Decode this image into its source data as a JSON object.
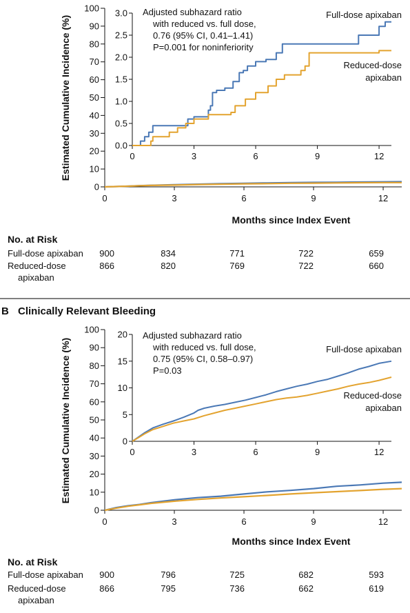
{
  "colors": {
    "full": "#4a78b5",
    "reduced": "#e3a32f",
    "axis": "#111111",
    "divider": "#555555"
  },
  "chart_data": [
    {
      "type": "line",
      "panel_letter": "",
      "panel_title": "",
      "xlabel": "Months since Index Event",
      "ylabel": "Estimated Cumulative Incidence (%)",
      "xlim": [
        0,
        12.8
      ],
      "ylim": [
        0,
        100
      ],
      "x_ticks": [
        0,
        3,
        6,
        9,
        12
      ],
      "y_ticks": [
        0,
        10,
        20,
        30,
        40,
        50,
        60,
        70,
        80,
        90,
        100
      ],
      "series": [
        {
          "name": "Full-dose apixaban",
          "key": "full",
          "x": [
            0,
            0.5,
            1,
            1.5,
            2,
            3,
            4,
            5,
            6,
            7,
            8,
            9,
            10,
            11,
            12,
            12.8
          ],
          "y": [
            0,
            0.2,
            0.4,
            0.7,
            0.9,
            1.2,
            1.5,
            1.8,
            2.0,
            2.2,
            2.4,
            2.5,
            2.6,
            2.7,
            2.8,
            2.9
          ]
        },
        {
          "name": "Reduced-dose apixaban",
          "key": "reduced",
          "x": [
            0,
            0.5,
            1,
            1.5,
            2,
            3,
            4,
            5,
            6,
            7,
            8,
            9,
            10,
            11,
            12,
            12.8
          ],
          "y": [
            0,
            0.2,
            0.4,
            0.6,
            0.8,
            1.0,
            1.3,
            1.5,
            1.7,
            1.8,
            2.0,
            2.1,
            2.2,
            2.3,
            2.4,
            2.4
          ]
        }
      ],
      "inset": {
        "xlim": [
          0,
          12.6
        ],
        "ylim": [
          0,
          3.0
        ],
        "x_ticks": [
          0,
          3,
          6,
          9,
          12
        ],
        "y_ticks": [
          0.0,
          0.5,
          1.0,
          1.5,
          2.0,
          2.5,
          3.0
        ],
        "y_tick_labels": [
          "0.0",
          "0.5",
          "1.0",
          "1.5",
          "2.0",
          "2.5",
          "3.0"
        ],
        "series": [
          {
            "name": "Full-dose apixaban",
            "key": "full",
            "x": [
              0,
              0.4,
              0.6,
              0.8,
              1.0,
              2.5,
              2.7,
              3.0,
              3.2,
              3.7,
              3.8,
              3.9,
              4.1,
              4.5,
              4.9,
              5.2,
              5.4,
              5.6,
              6.0,
              6.5,
              7.0,
              7.3,
              7.6,
              10.0,
              11.0,
              12.0,
              12.3,
              12.6
            ],
            "y": [
              0,
              0.1,
              0.2,
              0.3,
              0.45,
              0.45,
              0.6,
              0.65,
              0.65,
              0.8,
              0.9,
              1.2,
              1.25,
              1.3,
              1.45,
              1.65,
              1.7,
              1.8,
              1.9,
              1.95,
              2.1,
              2.3,
              2.3,
              2.3,
              2.5,
              2.7,
              2.8,
              2.8
            ]
          },
          {
            "name": "Reduced-dose apixaban",
            "key": "reduced",
            "x": [
              0,
              0.9,
              1.0,
              1.8,
              2.2,
              2.6,
              3.0,
              3.2,
              3.7,
              4.8,
              5.0,
              5.5,
              6.0,
              6.6,
              7.0,
              7.4,
              8.2,
              8.4,
              8.6,
              11.5,
              12.0,
              12.6
            ],
            "y": [
              0,
              0.1,
              0.2,
              0.3,
              0.4,
              0.5,
              0.6,
              0.6,
              0.7,
              0.75,
              0.9,
              1.05,
              1.2,
              1.35,
              1.5,
              1.6,
              1.7,
              1.8,
              2.1,
              2.1,
              2.15,
              2.15
            ]
          }
        ]
      },
      "annotation": [
        "Adjusted subhazard ratio",
        "with reduced vs. full dose,",
        "0.76 (95% CI, 0.41–1.41)",
        "P=0.001 for noninferiority"
      ],
      "legend": {
        "full": [
          "Full-dose apixaban"
        ],
        "reduced": [
          "Reduced-dose",
          "apixaban"
        ]
      },
      "risk": {
        "heading": "No. at Risk",
        "rows": [
          {
            "label": [
              "Full-dose apixaban"
            ],
            "values": [
              "900",
              "834",
              "771",
              "722",
              "659"
            ]
          },
          {
            "label": [
              "Reduced-dose",
              "apixaban"
            ],
            "values": [
              "866",
              "820",
              "769",
              "722",
              "660"
            ]
          }
        ]
      }
    },
    {
      "type": "line",
      "panel_letter": "B",
      "panel_title": "Clinically Relevant Bleeding",
      "xlabel": "Months since Index Event",
      "ylabel": "Estimated Cumulative Incidence (%)",
      "xlim": [
        0,
        12.8
      ],
      "ylim": [
        0,
        100
      ],
      "x_ticks": [
        0,
        3,
        6,
        9,
        12
      ],
      "y_ticks": [
        0,
        10,
        20,
        30,
        40,
        50,
        60,
        70,
        80,
        90,
        100
      ],
      "series": [
        {
          "name": "Full-dose apixaban",
          "key": "full",
          "x": [
            0,
            0.5,
            1,
            1.5,
            2,
            3,
            4,
            5,
            6,
            7,
            8,
            9,
            10,
            11,
            12,
            12.8
          ],
          "y": [
            0,
            1.5,
            2.5,
            3.2,
            4.2,
            5.8,
            7.0,
            7.8,
            9.0,
            10.2,
            11.0,
            12.0,
            13.3,
            14.0,
            15.0,
            15.5
          ]
        },
        {
          "name": "Reduced-dose apixaban",
          "key": "reduced",
          "x": [
            0,
            0.5,
            1,
            1.5,
            2,
            3,
            4,
            5,
            6,
            7,
            8,
            9,
            10,
            11,
            12,
            12.8
          ],
          "y": [
            0,
            1.2,
            2.2,
            3.0,
            3.8,
            5.0,
            6.0,
            6.8,
            7.5,
            8.2,
            9.0,
            9.7,
            10.3,
            10.9,
            11.6,
            12.0
          ]
        }
      ],
      "inset": {
        "xlim": [
          0,
          12.6
        ],
        "ylim": [
          0,
          20
        ],
        "x_ticks": [
          0,
          3,
          6,
          9,
          12
        ],
        "y_ticks": [
          0,
          5,
          10,
          15,
          20
        ],
        "y_tick_labels": [
          "0",
          "5",
          "10",
          "15",
          "20"
        ],
        "series": [
          {
            "name": "Full-dose apixaban",
            "key": "full",
            "x": [
              0,
              0.3,
              0.6,
              1.0,
              1.5,
              2.0,
              2.5,
              3.0,
              3.2,
              3.5,
              4.0,
              4.5,
              5.0,
              5.5,
              6.0,
              6.5,
              7.0,
              7.5,
              8.0,
              8.5,
              9.0,
              9.5,
              10.0,
              10.5,
              11.0,
              11.5,
              12.0,
              12.6
            ],
            "y": [
              0,
              0.8,
              1.6,
              2.5,
              3.2,
              3.8,
              4.5,
              5.3,
              5.8,
              6.2,
              6.6,
              6.9,
              7.3,
              7.7,
              8.2,
              8.7,
              9.3,
              9.8,
              10.3,
              10.7,
              11.2,
              11.6,
              12.2,
              12.8,
              13.5,
              14.0,
              14.6,
              15.0
            ]
          },
          {
            "name": "Reduced-dose apixaban",
            "key": "reduced",
            "x": [
              0,
              0.3,
              0.6,
              1.0,
              1.5,
              2.0,
              2.5,
              3.0,
              3.5,
              4.0,
              4.5,
              5.0,
              5.5,
              6.0,
              6.5,
              7.0,
              7.5,
              8.0,
              8.5,
              9.0,
              9.5,
              10.0,
              10.5,
              11.0,
              11.5,
              12.0,
              12.6
            ],
            "y": [
              0,
              0.7,
              1.4,
              2.2,
              2.8,
              3.4,
              3.8,
              4.2,
              4.8,
              5.3,
              5.8,
              6.2,
              6.6,
              7.0,
              7.4,
              7.8,
              8.1,
              8.3,
              8.6,
              9.0,
              9.4,
              9.8,
              10.3,
              10.7,
              11.0,
              11.4,
              12.0
            ]
          }
        ]
      },
      "annotation": [
        "Adjusted subhazard ratio",
        "with reduced vs. full dose,",
        "0.75 (95% CI, 0.58–0.97)",
        "P=0.03"
      ],
      "legend": {
        "full": [
          "Full-dose apixaban"
        ],
        "reduced": [
          "Reduced-dose",
          "apixaban"
        ]
      },
      "risk": {
        "heading": "No. at Risk",
        "rows": [
          {
            "label": [
              "Full-dose apixaban"
            ],
            "values": [
              "900",
              "796",
              "725",
              "682",
              "593"
            ]
          },
          {
            "label": [
              "Reduced-dose",
              "apixaban"
            ],
            "values": [
              "866",
              "795",
              "736",
              "662",
              "619"
            ]
          }
        ]
      }
    }
  ]
}
